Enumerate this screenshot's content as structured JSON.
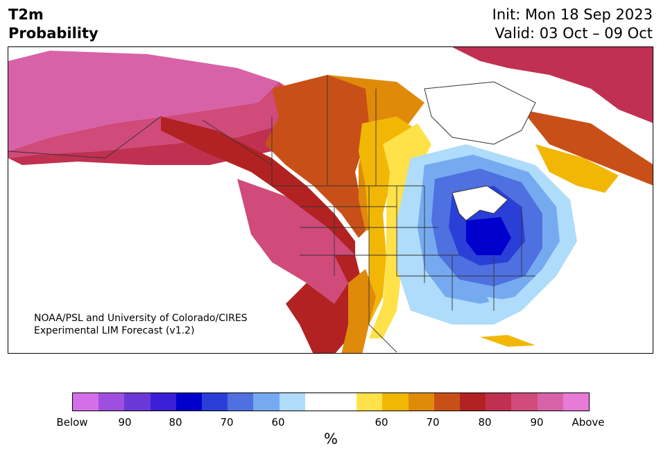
{
  "title": {
    "line1": "T2m",
    "line2": "Probability"
  },
  "header_right": {
    "init": "Init: Mon 18 Sep 2023",
    "valid": "Valid: 03 Oct – 09 Oct"
  },
  "credit": {
    "line1": "NOAA/PSL and University of Colorado/CIRES",
    "line2": "Experimental LIM Forecast (v1.2)"
  },
  "colorbar": {
    "colors": [
      "#d36fe8",
      "#9f4fe0",
      "#6b38d8",
      "#3b1fd6",
      "#0000cd",
      "#2a3fd8",
      "#4f70e0",
      "#76aaf0",
      "#aedcfa",
      "#ffffff",
      "#ffffff",
      "#ffe24a",
      "#f2b705",
      "#e08a0a",
      "#c85018",
      "#b22222",
      "#c03050",
      "#d04a7a",
      "#d862a8",
      "#e87ad8"
    ],
    "labels": [
      "Below",
      "90",
      "80",
      "70",
      "60",
      "60",
      "70",
      "80",
      "90",
      "Above"
    ],
    "unit": "%"
  },
  "map": {
    "region": "North America",
    "variable": "2-meter temperature probability",
    "legend_meaning": {
      "warm_colors": "above normal",
      "cool_colors": "below normal"
    }
  }
}
